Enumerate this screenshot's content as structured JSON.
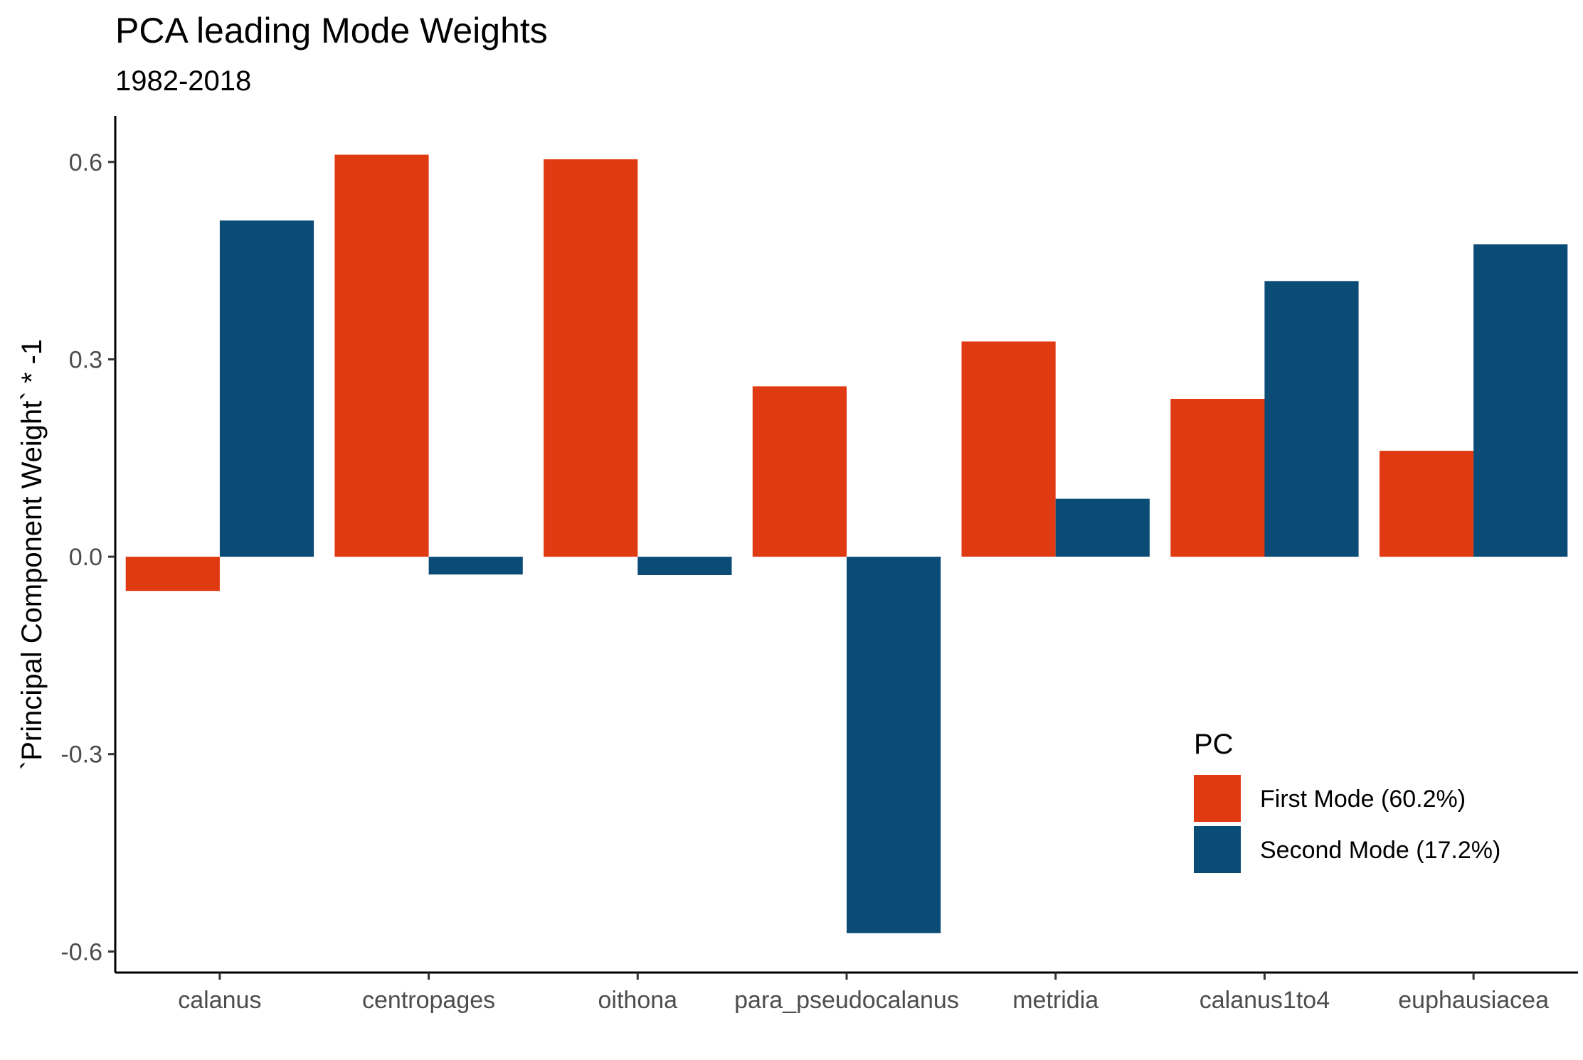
{
  "chart_data": {
    "type": "bar",
    "title": "PCA leading Mode Weights",
    "subtitle": "1982-2018",
    "xlabel": "",
    "ylabel": "`Principal Component Weight` * -1",
    "categories": [
      "calanus",
      "centropages",
      "oithona",
      "para_pseudocalanus",
      "metridia",
      "calanus1to4",
      "euphausiacea"
    ],
    "series": [
      {
        "name": "First Mode (60.2%)",
        "color": "#E03A12",
        "values": [
          -0.052,
          0.611,
          0.604,
          0.259,
          0.327,
          0.24,
          0.161
        ]
      },
      {
        "name": "Second Mode (17.2%)",
        "color": "#0B4C77",
        "values": [
          0.511,
          -0.027,
          -0.028,
          -0.572,
          0.088,
          0.419,
          0.475
        ]
      }
    ],
    "ylim": [
      -0.632,
      0.67
    ],
    "yticks": [
      -0.6,
      -0.3,
      0.0,
      0.3,
      0.6
    ],
    "ytick_labels": [
      "-0.6",
      "-0.3",
      "0.0",
      "0.3",
      "0.6"
    ],
    "legend": {
      "title": "PC",
      "position": "bottom-right inside"
    },
    "grid": false
  }
}
